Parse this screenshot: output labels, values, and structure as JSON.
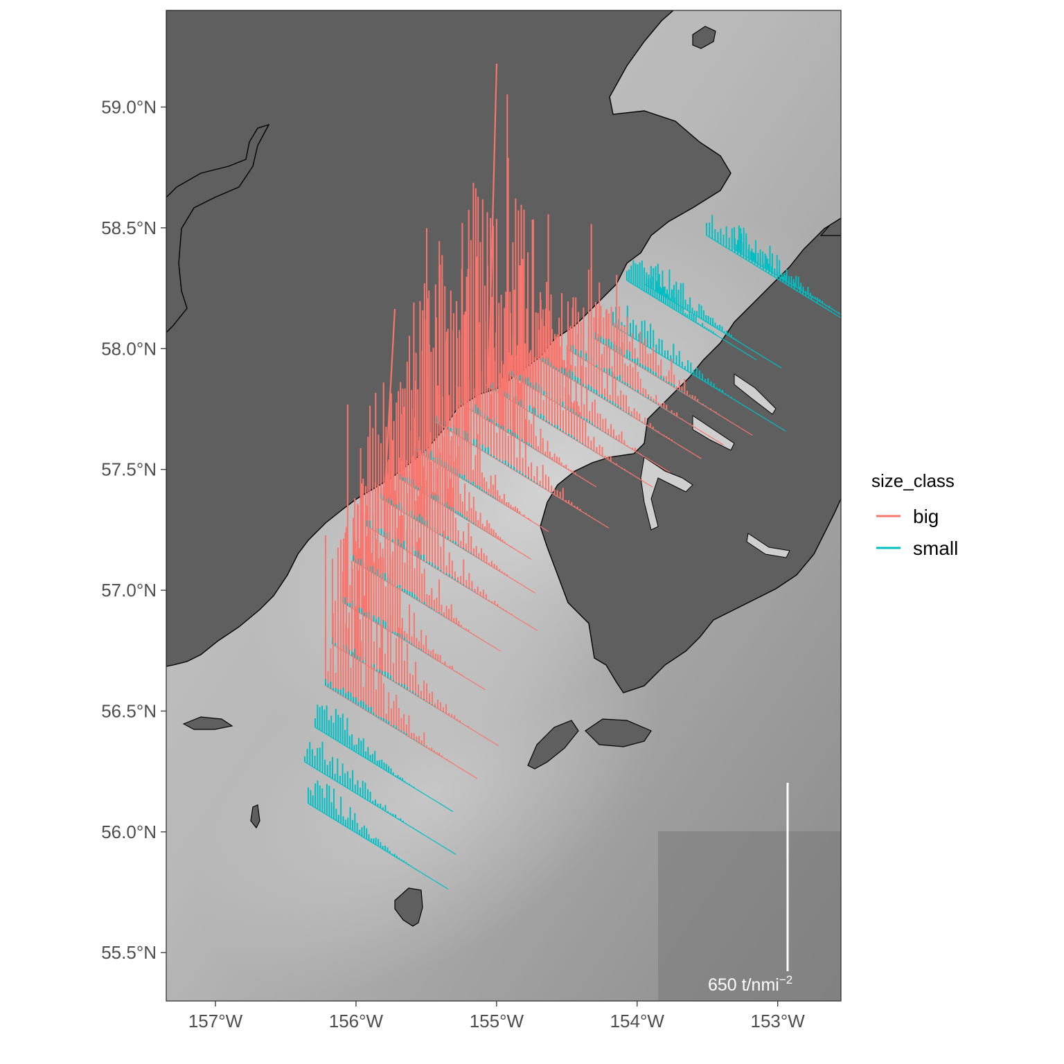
{
  "map": {
    "lon_range": [
      -157.35,
      -152.55
    ],
    "lat_range": [
      55.3,
      59.4
    ],
    "x_ticks": [
      {
        "lon": -157,
        "label": "157°W"
      },
      {
        "lon": -156,
        "label": "156°W"
      },
      {
        "lon": -155,
        "label": "155°W"
      },
      {
        "lon": -154,
        "label": "154°W"
      },
      {
        "lon": -153,
        "label": "153°W"
      }
    ],
    "y_ticks": [
      {
        "lat": 59.0,
        "label": "59.0°N"
      },
      {
        "lat": 58.5,
        "label": "58.5°N"
      },
      {
        "lat": 58.0,
        "label": "58.0°N"
      },
      {
        "lat": 57.5,
        "label": "57.5°N"
      },
      {
        "lat": 57.0,
        "label": "57.0°N"
      },
      {
        "lat": 56.5,
        "label": "56.5°N"
      },
      {
        "lat": 56.0,
        "label": "56.0°N"
      },
      {
        "lat": 55.5,
        "label": "55.5°N"
      }
    ],
    "colors": {
      "land": "#5f5f5f",
      "coast": "#000000",
      "big": "#F8766D",
      "small": "#00BFC4"
    }
  },
  "legend": {
    "title": "size_class",
    "items": [
      {
        "key": "big",
        "label": "big"
      },
      {
        "key": "small",
        "label": "small"
      }
    ]
  },
  "scale_bar": {
    "value_text": "650 t/nmi",
    "exponent": "−2"
  }
}
